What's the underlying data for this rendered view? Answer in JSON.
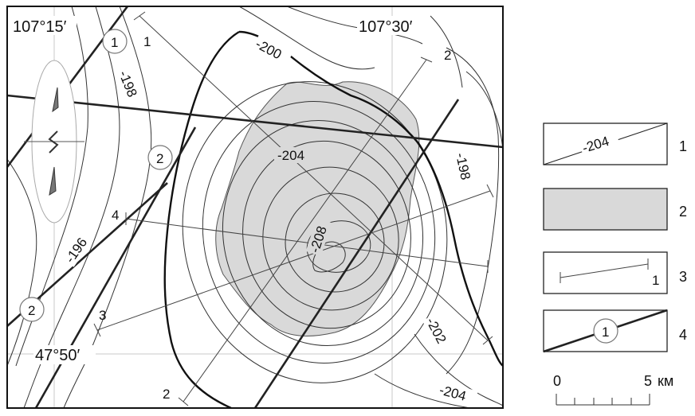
{
  "map": {
    "coords": {
      "lon_west": "107°15′",
      "lon_east": "107°30′",
      "lat": "47°50′"
    },
    "contour_labels": [
      "-200",
      "-198",
      "-204",
      "-196",
      "-208",
      "-198",
      "-202",
      "-204"
    ],
    "profile_labels": [
      "1",
      "2",
      "4",
      "3",
      "2"
    ],
    "fault_labels": [
      "1",
      "2",
      "2"
    ]
  },
  "legend": {
    "items": [
      {
        "num": "1",
        "sample": "-204"
      },
      {
        "num": "2",
        "sample": ""
      },
      {
        "num": "3",
        "sample": "1"
      },
      {
        "num": "4",
        "sample": "1"
      }
    ],
    "scale": {
      "zero": "0",
      "five": "5",
      "unit": "км"
    }
  },
  "colors": {
    "anomaly_fill": "#d9d9d9",
    "line": "#222222",
    "grid": "#c8c8c8"
  }
}
